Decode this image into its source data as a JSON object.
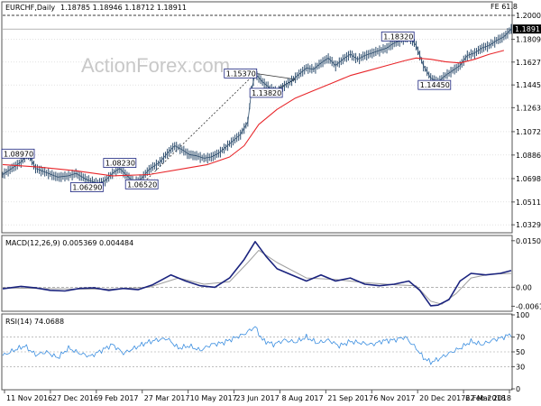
{
  "header": {
    "symbol_tf": "EURCHF,Daily",
    "ohlc": "1.18785 1.18946 1.18712 1.18911",
    "fe_label": "FE 61.8"
  },
  "watermark": "ActionForex.com",
  "colors": {
    "price": "#2f4f6f",
    "ma": "#e8262a",
    "macd": "#1a237e",
    "signal": "#9e9e9e",
    "rsi": "#3b8ee0",
    "grid": "#d0d0d0",
    "hline": "#000000",
    "label_border": "#1a237e"
  },
  "chart_data": [
    {
      "type": "line",
      "panel": "price",
      "ylim": [
        1.0273,
        1.2101
      ],
      "y_ticks": [
        "1.20000",
        "1.18090",
        "1.16275",
        "1.14450",
        "1.12635",
        "1.10725",
        "1.08860",
        "1.06980",
        "1.05115",
        "1.03295"
      ],
      "y_tick_values": [
        1.2,
        1.1809,
        1.16275,
        1.1445,
        1.12635,
        1.10725,
        1.0886,
        1.0698,
        1.05115,
        1.03295
      ],
      "last_price_label": "1.18911",
      "last_price": 1.18911,
      "level_line": 1.2,
      "x_labels": [
        "11 Nov 2016",
        "27 Dec 2016",
        "9 Feb 2017",
        "27 Mar 2017",
        "10 May 2017",
        "23 Jun 2017",
        "8 Aug 2017",
        "21 Sep 2017",
        "6 Nov 2017",
        "20 Dec 2017",
        "6 Feb 2018",
        "22 Mar 2018"
      ],
      "series": [
        {
          "key": "close",
          "values": [
            [
              0,
              1.073
            ],
            [
              6,
              1.079
            ],
            [
              10,
              1.083
            ],
            [
              14,
              1.0895
            ],
            [
              18,
              1.078
            ],
            [
              24,
              1.0745
            ],
            [
              30,
              1.071
            ],
            [
              36,
              1.072
            ],
            [
              40,
              1.074
            ],
            [
              46,
              1.069
            ],
            [
              52,
              1.066
            ],
            [
              56,
              1.068
            ],
            [
              60,
              1.074
            ],
            [
              64,
              1.078
            ],
            [
              68,
              1.072
            ],
            [
              72,
              1.0668
            ],
            [
              76,
              1.07
            ],
            [
              80,
              1.077
            ],
            [
              86,
              1.083
            ],
            [
              90,
              1.09
            ],
            [
              94,
              1.096
            ],
            [
              98,
              1.093
            ],
            [
              102,
              1.089
            ],
            [
              106,
              1.088
            ],
            [
              110,
              1.086
            ],
            [
              114,
              1.087
            ],
            [
              118,
              1.09
            ],
            [
              122,
              1.095
            ],
            [
              126,
              1.1
            ],
            [
              130,
              1.105
            ],
            [
              134,
              1.115
            ],
            [
              136,
              1.14
            ],
            [
              138,
              1.1537
            ],
            [
              142,
              1.147
            ],
            [
              146,
              1.142
            ],
            [
              150,
              1.139
            ],
            [
              154,
              1.144
            ],
            [
              158,
              1.148
            ],
            [
              162,
              1.153
            ],
            [
              166,
              1.158
            ],
            [
              170,
              1.157
            ],
            [
              174,
              1.162
            ],
            [
              178,
              1.166
            ],
            [
              182,
              1.16
            ],
            [
              186,
              1.165
            ],
            [
              190,
              1.169
            ],
            [
              194,
              1.165
            ],
            [
              198,
              1.168
            ],
            [
              202,
              1.17
            ],
            [
              206,
              1.172
            ],
            [
              210,
              1.174
            ],
            [
              214,
              1.178
            ],
            [
              218,
              1.18
            ],
            [
              222,
              1.1832
            ],
            [
              226,
              1.176
            ],
            [
              230,
              1.16
            ],
            [
              234,
              1.15
            ],
            [
              238,
              1.147
            ],
            [
              242,
              1.152
            ],
            [
              246,
              1.156
            ],
            [
              250,
              1.16
            ],
            [
              254,
              1.168
            ],
            [
              258,
              1.17
            ],
            [
              262,
              1.174
            ],
            [
              266,
              1.176
            ],
            [
              270,
              1.18
            ],
            [
              274,
              1.183
            ],
            [
              278,
              1.1891
            ]
          ]
        },
        {
          "key": "ma",
          "values": [
            [
              0,
              1.081
            ],
            [
              20,
              1.079
            ],
            [
              40,
              1.076
            ],
            [
              60,
              1.072
            ],
            [
              80,
              1.073
            ],
            [
              100,
              1.078
            ],
            [
              112,
              1.081
            ],
            [
              124,
              1.087
            ],
            [
              132,
              1.096
            ],
            [
              140,
              1.113
            ],
            [
              150,
              1.125
            ],
            [
              160,
              1.134
            ],
            [
              170,
              1.14
            ],
            [
              180,
              1.146
            ],
            [
              190,
              1.152
            ],
            [
              200,
              1.156
            ],
            [
              210,
              1.16
            ],
            [
              220,
              1.164
            ],
            [
              226,
              1.166
            ],
            [
              234,
              1.165
            ],
            [
              242,
              1.163
            ],
            [
              250,
              1.162
            ],
            [
              258,
              1.165
            ],
            [
              266,
              1.169
            ],
            [
              274,
              1.172
            ]
          ]
        }
      ],
      "annotations": [
        {
          "text": "1.08970",
          "x": 8,
          "y": 1.0897
        },
        {
          "text": "1.06290",
          "x": 46,
          "y": 1.0629
        },
        {
          "text": "1.08230",
          "x": 64,
          "y": 1.0823
        },
        {
          "text": "1.06520",
          "x": 76,
          "y": 1.0652
        },
        {
          "text": "1.15370",
          "x": 130,
          "y": 1.1537
        },
        {
          "text": "1.13820",
          "x": 144,
          "y": 1.1382
        },
        {
          "text": "1.18320",
          "x": 216,
          "y": 1.1832
        },
        {
          "text": "1.14450",
          "x": 236,
          "y": 1.1445
        }
      ]
    },
    {
      "type": "line",
      "panel": "macd",
      "title": "MACD(12,26,9) 0.005369 0.004484",
      "ylim": [
        -0.0075,
        0.0165
      ],
      "y_ticks": [
        "0.015097",
        "0.00",
        "-0.006163"
      ],
      "y_tick_values": [
        0.015097,
        0.0,
        -0.006163
      ],
      "series": [
        {
          "key": "macd",
          "values": [
            [
              0,
              -0.0005
            ],
            [
              10,
              0.0003
            ],
            [
              18,
              -0.0002
            ],
            [
              26,
              -0.001
            ],
            [
              34,
              -0.0012
            ],
            [
              42,
              -0.0004
            ],
            [
              50,
              -0.0002
            ],
            [
              58,
              -0.001
            ],
            [
              66,
              -0.0004
            ],
            [
              74,
              -0.0008
            ],
            [
              82,
              0.0008
            ],
            [
              92,
              0.004
            ],
            [
              100,
              0.002
            ],
            [
              108,
              0.0005
            ],
            [
              116,
              0.0
            ],
            [
              124,
              0.003
            ],
            [
              132,
              0.009
            ],
            [
              138,
              0.0148
            ],
            [
              144,
              0.01
            ],
            [
              150,
              0.006
            ],
            [
              158,
              0.004
            ],
            [
              166,
              0.002
            ],
            [
              174,
              0.004
            ],
            [
              182,
              0.002
            ],
            [
              190,
              0.003
            ],
            [
              198,
              0.001
            ],
            [
              206,
              0.0005
            ],
            [
              214,
              0.001
            ],
            [
              222,
              0.002
            ],
            [
              228,
              -0.001
            ],
            [
              234,
              -0.006
            ],
            [
              238,
              -0.0058
            ],
            [
              244,
              -0.004
            ],
            [
              250,
              0.002
            ],
            [
              256,
              0.0045
            ],
            [
              264,
              0.004
            ],
            [
              272,
              0.0045
            ],
            [
              278,
              0.0054
            ]
          ]
        },
        {
          "key": "signal",
          "values": [
            [
              0,
              -0.0002
            ],
            [
              20,
              -0.0004
            ],
            [
              40,
              -0.0006
            ],
            [
              60,
              -0.0006
            ],
            [
              80,
              0.0
            ],
            [
              96,
              0.003
            ],
            [
              110,
              0.001
            ],
            [
              124,
              0.0018
            ],
            [
              134,
              0.008
            ],
            [
              140,
              0.012
            ],
            [
              150,
              0.008
            ],
            [
              166,
              0.003
            ],
            [
              182,
              0.0025
            ],
            [
              198,
              0.0015
            ],
            [
              214,
              0.0008
            ],
            [
              226,
              0.0005
            ],
            [
              234,
              -0.0045
            ],
            [
              240,
              -0.0055
            ],
            [
              248,
              -0.002
            ],
            [
              256,
              0.003
            ],
            [
              266,
              0.0042
            ],
            [
              278,
              0.0045
            ]
          ]
        }
      ]
    },
    {
      "type": "line",
      "panel": "rsi",
      "title": "RSI(14) 74.0688",
      "ylim": [
        0,
        100
      ],
      "y_ticks": [
        "100",
        "70",
        "50",
        "30",
        "0"
      ],
      "y_tick_values": [
        100,
        70,
        50,
        30,
        0
      ],
      "series": [
        {
          "key": "rsi",
          "values": [
            [
              0,
              45
            ],
            [
              6,
              52
            ],
            [
              12,
              58
            ],
            [
              18,
              46
            ],
            [
              24,
              50
            ],
            [
              30,
              42
            ],
            [
              36,
              55
            ],
            [
              42,
              48
            ],
            [
              48,
              44
            ],
            [
              54,
              52
            ],
            [
              60,
              60
            ],
            [
              66,
              48
            ],
            [
              72,
              55
            ],
            [
              78,
              62
            ],
            [
              84,
              66
            ],
            [
              90,
              68
            ],
            [
              96,
              55
            ],
            [
              102,
              58
            ],
            [
              108,
              52
            ],
            [
              114,
              60
            ],
            [
              120,
              62
            ],
            [
              126,
              68
            ],
            [
              132,
              74
            ],
            [
              138,
              84
            ],
            [
              142,
              66
            ],
            [
              148,
              60
            ],
            [
              154,
              66
            ],
            [
              160,
              63
            ],
            [
              166,
              70
            ],
            [
              172,
              62
            ],
            [
              178,
              66
            ],
            [
              184,
              58
            ],
            [
              190,
              64
            ],
            [
              196,
              62
            ],
            [
              202,
              60
            ],
            [
              208,
              65
            ],
            [
              214,
              66
            ],
            [
              220,
              70
            ],
            [
              226,
              55
            ],
            [
              230,
              42
            ],
            [
              234,
              36
            ],
            [
              238,
              40
            ],
            [
              244,
              48
            ],
            [
              250,
              55
            ],
            [
              256,
              64
            ],
            [
              262,
              60
            ],
            [
              268,
              66
            ],
            [
              274,
              70
            ],
            [
              278,
              74
            ]
          ]
        }
      ]
    }
  ]
}
